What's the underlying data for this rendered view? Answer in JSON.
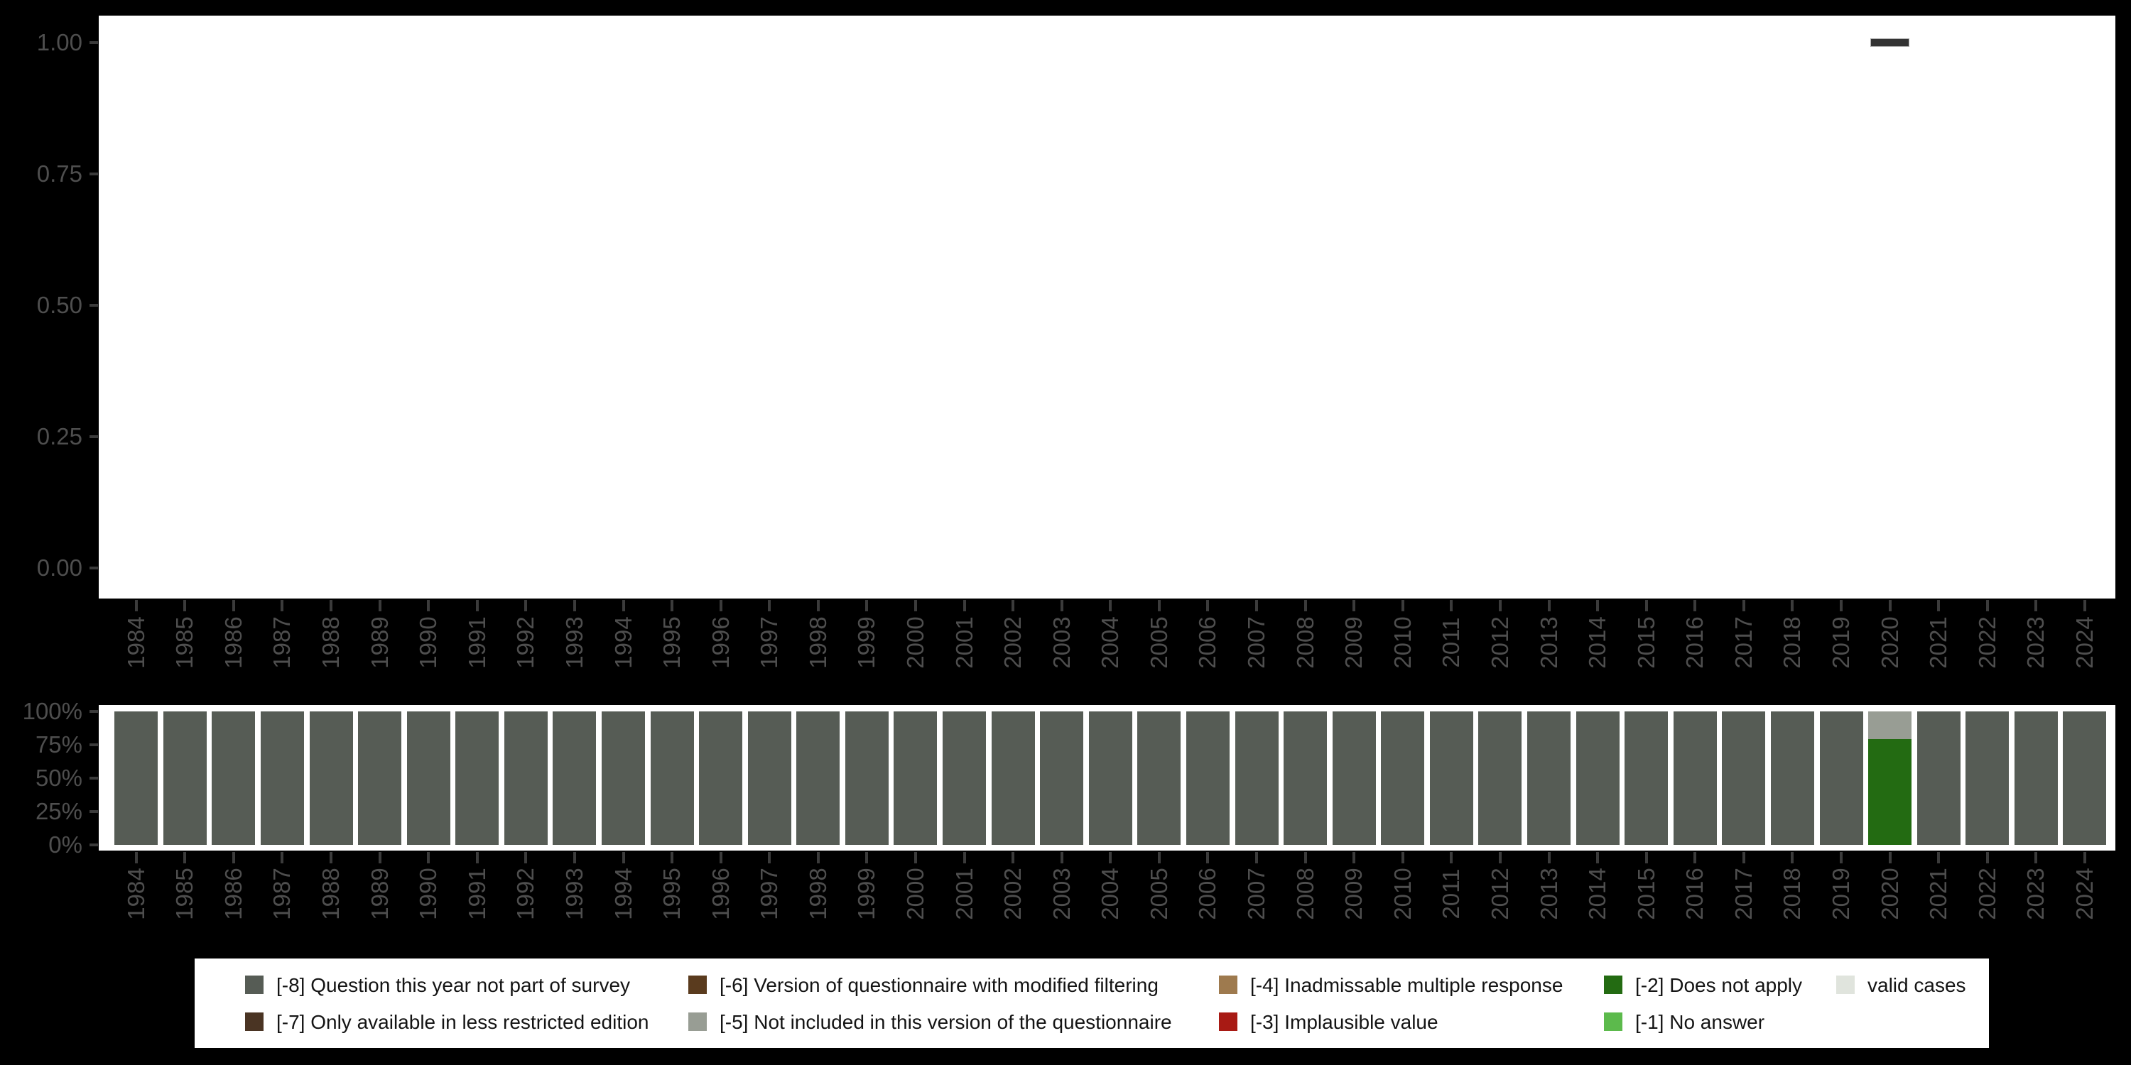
{
  "palette": {
    "-8": "#565c55",
    "-7": "#4a3423",
    "-6": "#5a3b1e",
    "-5": "#989d94",
    "-4": "#9e7a4e",
    "-3": "#a81a14",
    "-2": "#236b12",
    "-1": "#5cba4c",
    "valid": "#e0e4dd",
    "point_fill": "#333333",
    "point_border": "#ababab",
    "axis_text": "#4e4e4e",
    "axis_tick": "#3b3b3b",
    "panel_bg": "#ffffff",
    "page_bg": "#000000"
  },
  "chart_data": {
    "years": [
      1984,
      1985,
      1986,
      1987,
      1988,
      1989,
      1990,
      1991,
      1992,
      1993,
      1994,
      1995,
      1996,
      1997,
      1998,
      1999,
      2000,
      2001,
      2002,
      2003,
      2004,
      2005,
      2006,
      2007,
      2008,
      2009,
      2010,
      2011,
      2012,
      2013,
      2014,
      2015,
      2016,
      2017,
      2018,
      2019,
      2020,
      2021,
      2022,
      2023,
      2024
    ],
    "panels": [
      {
        "type": "scatter",
        "title": "",
        "marker": "dash",
        "points": [
          {
            "x": 2020,
            "y": 1.0
          }
        ],
        "ylim": [
          0,
          1
        ],
        "ytick_values": [
          1.0,
          0.75,
          0.5,
          0.25,
          0.0
        ],
        "ytick_labels": [
          "1.00",
          "0.75",
          "0.50",
          "0.25",
          "0.00"
        ],
        "grid": false
      },
      {
        "type": "bar",
        "stacked_percent": true,
        "title": "",
        "ytick_values": [
          100,
          75,
          50,
          25,
          0
        ],
        "ytick_labels": [
          "100%",
          "75%",
          "50%",
          "25%",
          "0%"
        ],
        "series": [
          {
            "name": "[-8] Question this year not part of survey",
            "color_key": "-8",
            "values": [
              100,
              100,
              100,
              100,
              100,
              100,
              100,
              100,
              100,
              100,
              100,
              100,
              100,
              100,
              100,
              100,
              100,
              100,
              100,
              100,
              100,
              100,
              100,
              100,
              100,
              100,
              100,
              100,
              100,
              100,
              100,
              100,
              100,
              100,
              100,
              100,
              0,
              100,
              100,
              100,
              100
            ]
          },
          {
            "name": "[-2] Does not apply",
            "color_key": "-2",
            "values": [
              0,
              0,
              0,
              0,
              0,
              0,
              0,
              0,
              0,
              0,
              0,
              0,
              0,
              0,
              0,
              0,
              0,
              0,
              0,
              0,
              0,
              0,
              0,
              0,
              0,
              0,
              0,
              0,
              0,
              0,
              0,
              0,
              0,
              0,
              0,
              0,
              79,
              0,
              0,
              0,
              0
            ]
          },
          {
            "name": "[-5] Not included in this version of the questionnaire",
            "color_key": "-5",
            "values": [
              0,
              0,
              0,
              0,
              0,
              0,
              0,
              0,
              0,
              0,
              0,
              0,
              0,
              0,
              0,
              0,
              0,
              0,
              0,
              0,
              0,
              0,
              0,
              0,
              0,
              0,
              0,
              0,
              0,
              0,
              0,
              0,
              0,
              0,
              0,
              0,
              21,
              0,
              0,
              0,
              0
            ]
          }
        ],
        "grid": false,
        "legend_position": "bottom"
      }
    ]
  },
  "legend": {
    "items": [
      {
        "key": "-8",
        "label": "[-8] Question this year not part of survey"
      },
      {
        "key": "-7",
        "label": "[-7] Only available in less restricted edition"
      },
      {
        "key": "-6",
        "label": "[-6] Version of questionnaire with modified filtering"
      },
      {
        "key": "-5",
        "label": "[-5] Not included in this version of the questionnaire"
      },
      {
        "key": "-4",
        "label": "[-4] Inadmissable multiple response"
      },
      {
        "key": "-3",
        "label": "[-3] Implausible value"
      },
      {
        "key": "-2",
        "label": "[-2] Does not apply"
      },
      {
        "key": "-1",
        "label": "[-1] No answer"
      },
      {
        "key": "valid",
        "label": "valid cases"
      }
    ]
  }
}
